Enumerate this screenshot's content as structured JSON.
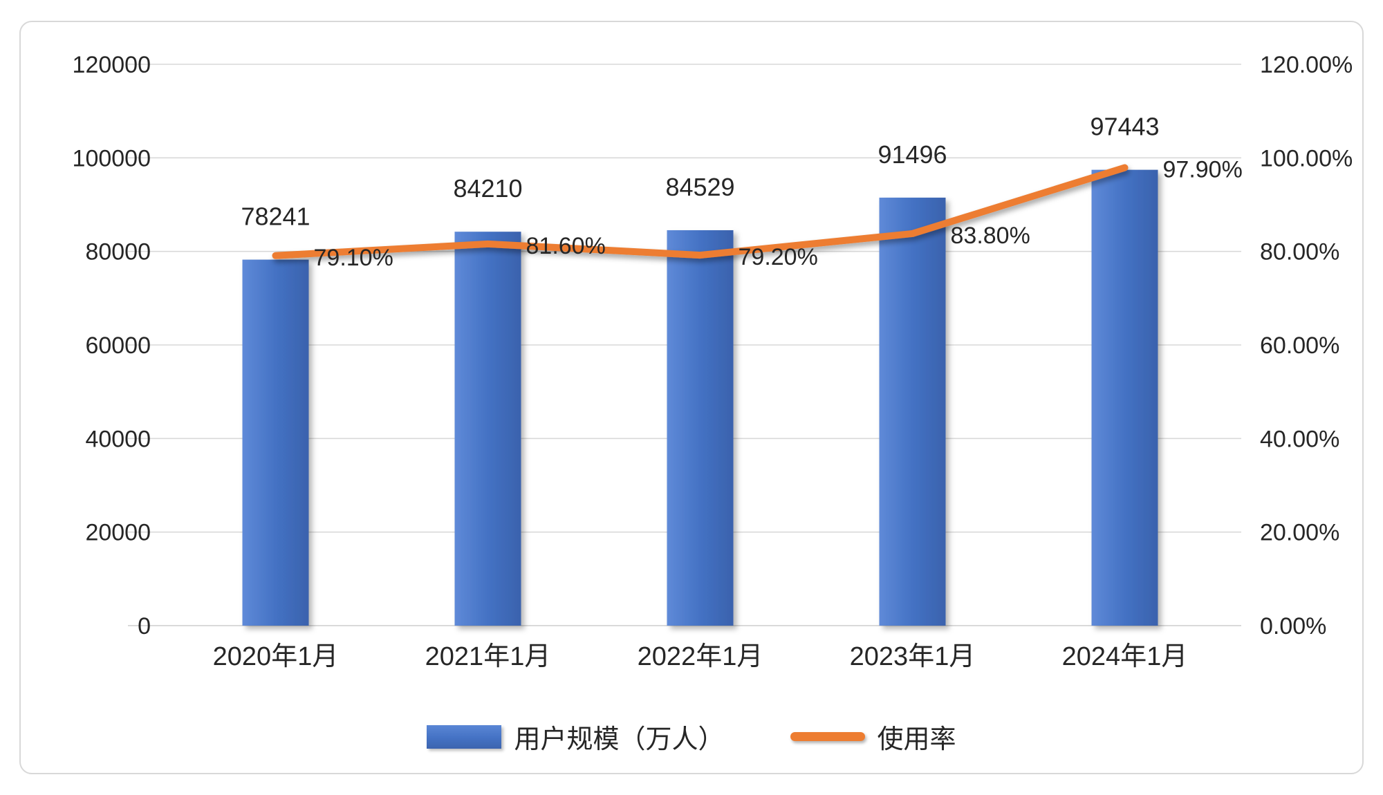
{
  "chart_data": {
    "type": "combo",
    "title": "",
    "categories": [
      "2020年1月",
      "2021年1月",
      "2022年1月",
      "2023年1月",
      "2024年1月"
    ],
    "series": [
      {
        "name": "用户规模（万人）",
        "type": "bar",
        "axis": "left",
        "color": "#4472C4",
        "values": [
          78241,
          84210,
          84529,
          91496,
          97443
        ],
        "labels": [
          "78241",
          "84210",
          "84529",
          "91496",
          "97443"
        ]
      },
      {
        "name": "使用率",
        "type": "line",
        "axis": "right",
        "color": "#ED7D31",
        "values": [
          79.1,
          81.6,
          79.2,
          83.8,
          97.9
        ],
        "labels": [
          "79.10%",
          "81.60%",
          "79.20%",
          "83.80%",
          "97.90%"
        ]
      }
    ],
    "left_axis": {
      "min": 0,
      "max": 120000,
      "step": 20000,
      "ticks": [
        "0",
        "20000",
        "40000",
        "60000",
        "80000",
        "100000",
        "120000"
      ]
    },
    "right_axis": {
      "min": 0,
      "max": 120,
      "step": 20,
      "ticks": [
        "0.00%",
        "20.00%",
        "40.00%",
        "60.00%",
        "80.00%",
        "100.00%",
        "120.00%"
      ]
    },
    "grid": true,
    "legend_position": "bottom",
    "colors": {
      "bar": "#4472C4",
      "line": "#ED7D31",
      "gridline": "#d9d9d9",
      "text": "#262626"
    }
  }
}
